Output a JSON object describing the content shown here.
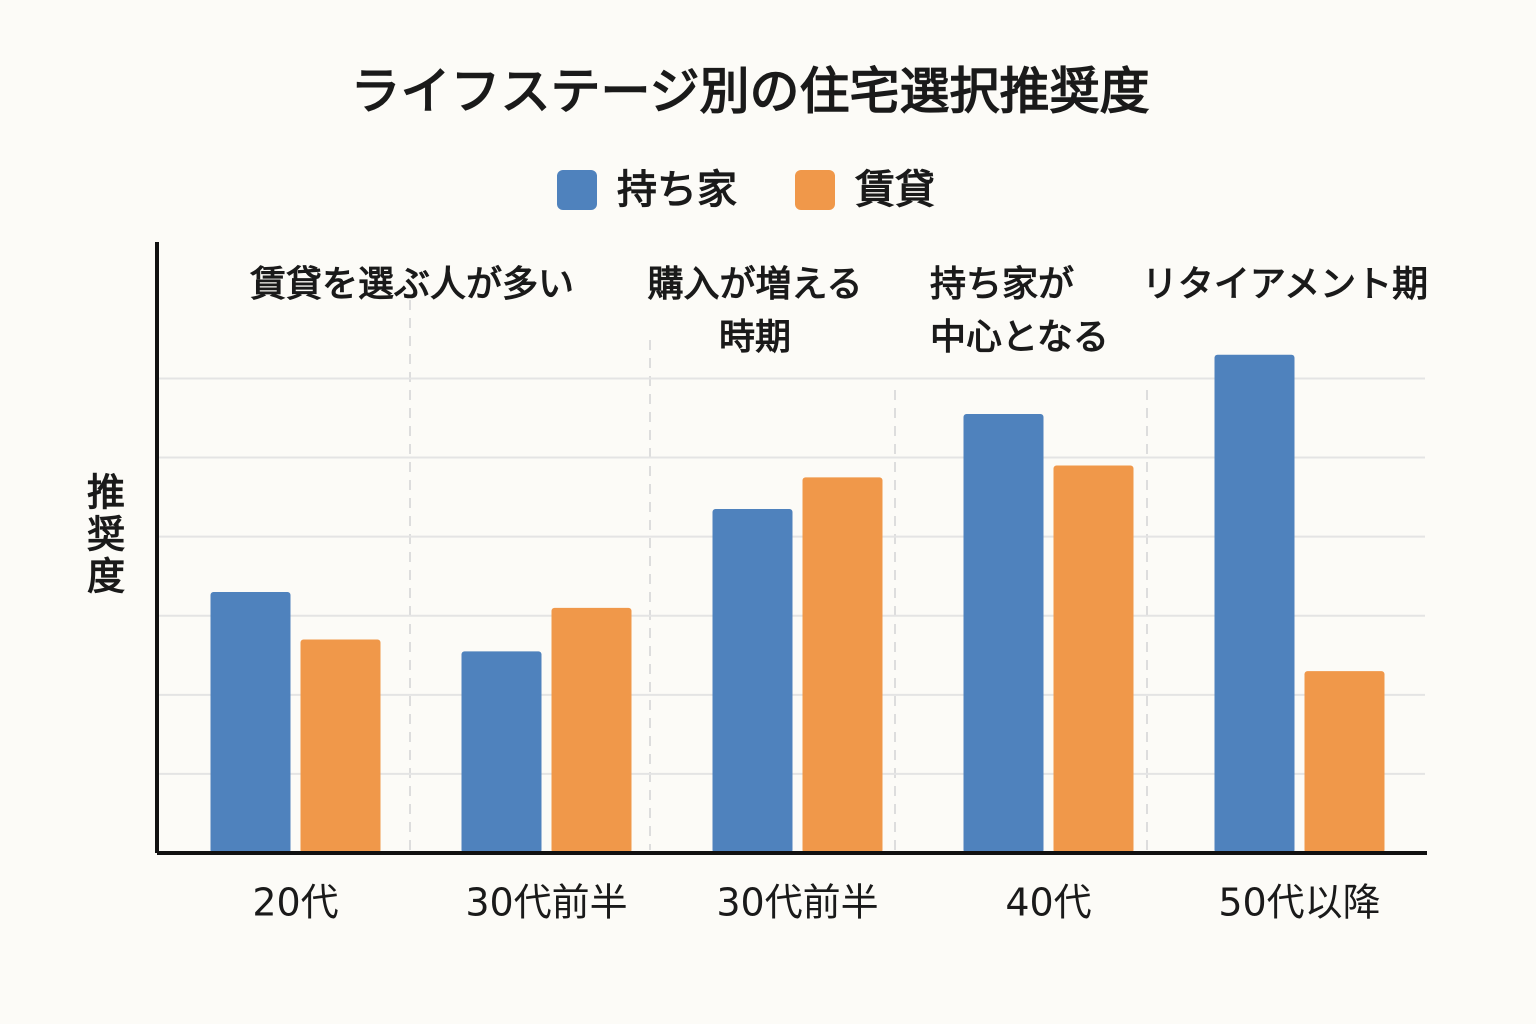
{
  "chart_data": {
    "type": "bar",
    "title": "ライフステージ別の住宅選択推奨度",
    "y_label": "推奨度",
    "categories": [
      "20代",
      "30代前半",
      "30代前半",
      "40代",
      "50代以降"
    ],
    "series": [
      {
        "name": "持ち家",
        "color": "#4f82bd",
        "values": [
          3.3,
          2.55,
          4.35,
          5.55,
          6.3
        ]
      },
      {
        "name": "賃貸",
        "color": "#f0984a",
        "values": [
          2.7,
          3.1,
          4.75,
          4.9,
          2.3
        ]
      }
    ],
    "annotations": [
      [
        "賃貸を選ぶ人が多い"
      ],
      [
        "購入が増える",
        "時期"
      ],
      [
        "持ち家が",
        "中心となる"
      ],
      [
        "リタイアメント期"
      ]
    ],
    "ylim": [
      0,
      7.7
    ],
    "yticks": [
      1,
      2,
      3,
      4,
      5,
      6
    ],
    "grid": true,
    "y_tick_labels": false,
    "legend": "top"
  }
}
